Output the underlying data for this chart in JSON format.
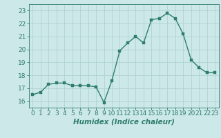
{
  "x": [
    0,
    1,
    2,
    3,
    4,
    5,
    6,
    7,
    8,
    9,
    10,
    11,
    12,
    13,
    14,
    15,
    16,
    17,
    18,
    19,
    20,
    21,
    22,
    23
  ],
  "y": [
    16.5,
    16.7,
    17.3,
    17.4,
    17.4,
    17.2,
    17.2,
    17.2,
    17.1,
    15.9,
    17.6,
    19.9,
    20.5,
    21.0,
    20.5,
    22.3,
    22.4,
    22.8,
    22.4,
    21.2,
    19.2,
    18.6,
    18.2,
    18.2
  ],
  "line_color": "#2e7d6e",
  "marker_color": "#2e7d6e",
  "bg_color": "#cce8e8",
  "grid_color": "#aacfcf",
  "xlabel": "Humidex (Indice chaleur)",
  "ylim": [
    15.5,
    23.5
  ],
  "xlim": [
    -0.5,
    23.5
  ],
  "yticks": [
    16,
    17,
    18,
    19,
    20,
    21,
    22,
    23
  ],
  "xticks": [
    0,
    1,
    2,
    3,
    4,
    5,
    6,
    7,
    8,
    9,
    10,
    11,
    12,
    13,
    14,
    15,
    16,
    17,
    18,
    19,
    20,
    21,
    22,
    23
  ],
  "tick_fontsize": 6.5,
  "xlabel_fontsize": 7.5,
  "marker_size": 2.5,
  "line_width": 1.0
}
